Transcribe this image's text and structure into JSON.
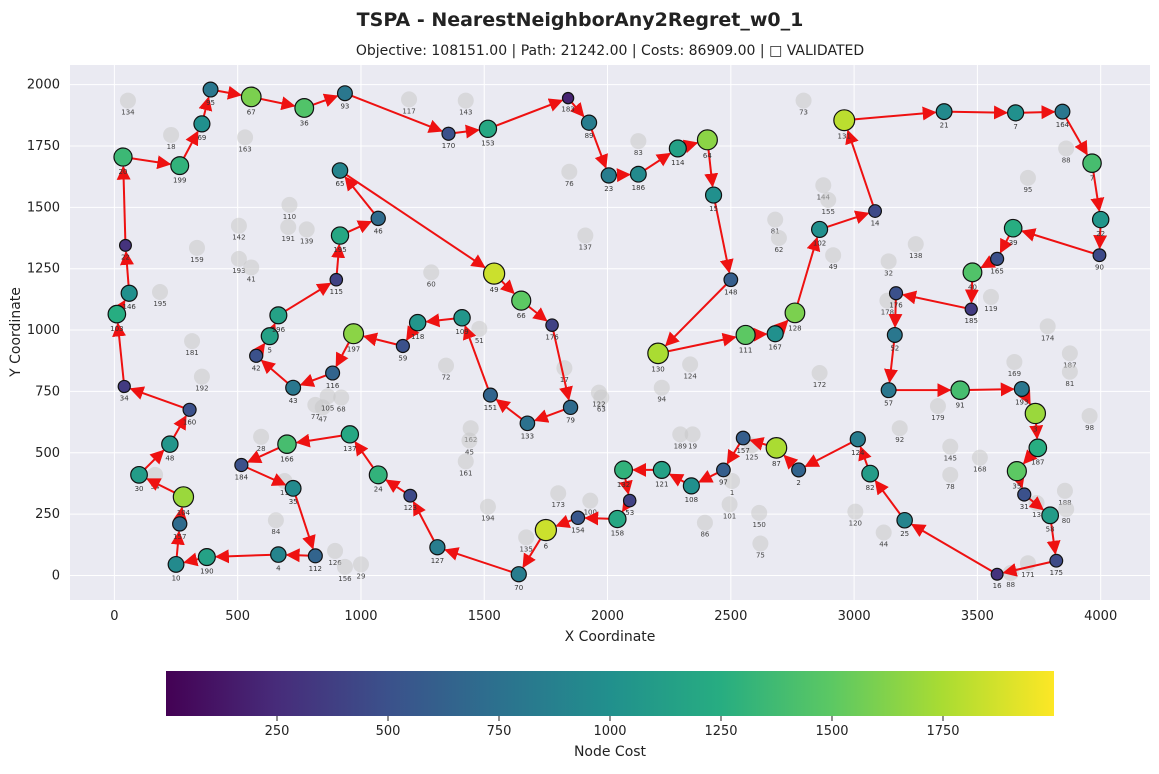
{
  "chart_data": {
    "type": "scatter",
    "title": "TSPA - NearestNeighborAny2Regret_w0_1",
    "subtitle": "Objective: 108151.00 | Path: 21242.00 | Costs: 86909.00 | □ VALIDATED",
    "xlabel": "X Coordinate",
    "ylabel": "Y Coordinate",
    "xlim": [
      -180,
      4200
    ],
    "ylim": [
      -100,
      2080
    ],
    "x_ticks": [
      0,
      500,
      1000,
      1500,
      2000,
      2500,
      3000,
      3500,
      4000
    ],
    "y_ticks": [
      0,
      250,
      500,
      750,
      1000,
      1250,
      1500,
      1750,
      2000
    ],
    "grid": true,
    "colorbar": {
      "label": "Node Cost",
      "min": 0,
      "max": 2000,
      "ticks": [
        250,
        500,
        750,
        1000,
        1250,
        1500,
        1750
      ],
      "colormap": [
        "#440154",
        "#472c7a",
        "#3b518b",
        "#2c718e",
        "#21908d",
        "#27ad81",
        "#5cc863",
        "#aadc32",
        "#fde725"
      ]
    },
    "colors": {
      "edge": "#ee1111",
      "background": "#eaeaf2",
      "grid": "#ffffff",
      "unselected": "#c8c8c8"
    },
    "route": [
      {
        "id": "95",
        "x": 390,
        "y": 1980,
        "cost": 800
      },
      {
        "id": "67",
        "x": 555,
        "y": 1950,
        "cost": 1600
      },
      {
        "id": "36",
        "x": 770,
        "y": 1905,
        "cost": 1450
      },
      {
        "id": "93",
        "x": 935,
        "y": 1965,
        "cost": 800
      },
      {
        "id": "170",
        "x": 1355,
        "y": 1800,
        "cost": 500
      },
      {
        "id": "153",
        "x": 1515,
        "y": 1820,
        "cost": 1200
      },
      {
        "id": "183",
        "x": 1840,
        "y": 1945,
        "cost": 200
      },
      {
        "id": "89",
        "x": 1925,
        "y": 1845,
        "cost": 850
      },
      {
        "id": "23",
        "x": 2005,
        "y": 1630,
        "cost": 850
      },
      {
        "id": "186",
        "x": 2125,
        "y": 1635,
        "cost": 950
      },
      {
        "id": "114",
        "x": 2285,
        "y": 1740,
        "cost": 1150
      },
      {
        "id": "64",
        "x": 2405,
        "y": 1775,
        "cost": 1650
      },
      {
        "id": "15",
        "x": 2430,
        "y": 1550,
        "cost": 1000
      },
      {
        "id": "148",
        "x": 2500,
        "y": 1205,
        "cost": 600
      },
      {
        "id": "130",
        "x": 2205,
        "y": 905,
        "cost": 1750
      },
      {
        "id": "111",
        "x": 2560,
        "y": 980,
        "cost": 1500
      },
      {
        "id": "167",
        "x": 2680,
        "y": 985,
        "cost": 1000
      },
      {
        "id": "128",
        "x": 2760,
        "y": 1070,
        "cost": 1600
      },
      {
        "id": "102",
        "x": 2860,
        "y": 1410,
        "cost": 1000
      },
      {
        "id": "14",
        "x": 3085,
        "y": 1485,
        "cost": 450
      },
      {
        "id": "131",
        "x": 2960,
        "y": 1855,
        "cost": 1800
      },
      {
        "id": "21",
        "x": 3365,
        "y": 1890,
        "cost": 950
      },
      {
        "id": "7",
        "x": 3655,
        "y": 1885,
        "cost": 1000
      },
      {
        "id": "164",
        "x": 3845,
        "y": 1890,
        "cost": 800
      },
      {
        "id": "7b",
        "x": 3965,
        "y": 1680,
        "cost": 1400
      },
      {
        "id": "22",
        "x": 4000,
        "y": 1450,
        "cost": 1050
      },
      {
        "id": "90",
        "x": 3995,
        "y": 1305,
        "cost": 450
      },
      {
        "id": "39",
        "x": 3645,
        "y": 1415,
        "cost": 1250
      },
      {
        "id": "165",
        "x": 3580,
        "y": 1290,
        "cost": 500
      },
      {
        "id": "40",
        "x": 3480,
        "y": 1235,
        "cost": 1450
      },
      {
        "id": "185",
        "x": 3475,
        "y": 1085,
        "cost": 350
      },
      {
        "id": "176",
        "x": 3170,
        "y": 1150,
        "cost": 500
      },
      {
        "id": "52",
        "x": 3165,
        "y": 980,
        "cost": 800
      },
      {
        "id": "57",
        "x": 3140,
        "y": 755,
        "cost": 800
      },
      {
        "id": "91",
        "x": 3430,
        "y": 755,
        "cost": 1400
      },
      {
        "id": "193",
        "x": 3680,
        "y": 760,
        "cost": 800
      },
      {
        "id": "3",
        "x": 3735,
        "y": 660,
        "cost": 1700
      },
      {
        "id": "187",
        "x": 3745,
        "y": 520,
        "cost": 1250
      },
      {
        "id": "35",
        "x": 3660,
        "y": 425,
        "cost": 1500
      },
      {
        "id": "31",
        "x": 3690,
        "y": 330,
        "cost": 500
      },
      {
        "id": "58",
        "x": 3795,
        "y": 245,
        "cost": 1100
      },
      {
        "id": "175",
        "x": 3820,
        "y": 60,
        "cost": 450
      },
      {
        "id": "16",
        "x": 3580,
        "y": 5,
        "cost": 300
      },
      {
        "id": "25",
        "x": 3205,
        "y": 225,
        "cost": 900
      },
      {
        "id": "82",
        "x": 3065,
        "y": 415,
        "cost": 1100
      },
      {
        "id": "124",
        "x": 3015,
        "y": 555,
        "cost": 850
      },
      {
        "id": "2",
        "x": 2775,
        "y": 430,
        "cost": 650
      },
      {
        "id": "87",
        "x": 2685,
        "y": 520,
        "cost": 1750
      },
      {
        "id": "157",
        "x": 2550,
        "y": 560,
        "cost": 600
      },
      {
        "id": "97",
        "x": 2470,
        "y": 430,
        "cost": 600
      },
      {
        "id": "108",
        "x": 2340,
        "y": 365,
        "cost": 1000
      },
      {
        "id": "121",
        "x": 2220,
        "y": 430,
        "cost": 1150
      },
      {
        "id": "132",
        "x": 2065,
        "y": 430,
        "cost": 1300
      },
      {
        "id": "53",
        "x": 2090,
        "y": 305,
        "cost": 400
      },
      {
        "id": "158",
        "x": 2040,
        "y": 230,
        "cost": 1200
      },
      {
        "id": "154",
        "x": 1880,
        "y": 235,
        "cost": 550
      },
      {
        "id": "6",
        "x": 1750,
        "y": 185,
        "cost": 1850
      },
      {
        "id": "70",
        "x": 1640,
        "y": 5,
        "cost": 850
      },
      {
        "id": "127",
        "x": 1310,
        "y": 115,
        "cost": 850
      },
      {
        "id": "123",
        "x": 1200,
        "y": 325,
        "cost": 450
      },
      {
        "id": "24",
        "x": 1070,
        "y": 410,
        "cost": 1300
      },
      {
        "id": "137b",
        "x": 955,
        "y": 575,
        "cost": 1200
      },
      {
        "id": "166",
        "x": 700,
        "y": 535,
        "cost": 1400
      },
      {
        "id": "184",
        "x": 515,
        "y": 450,
        "cost": 500
      },
      {
        "id": "35b",
        "x": 725,
        "y": 355,
        "cost": 950
      },
      {
        "id": "112",
        "x": 815,
        "y": 80,
        "cost": 650
      },
      {
        "id": "4",
        "x": 665,
        "y": 85,
        "cost": 900
      },
      {
        "id": "190",
        "x": 375,
        "y": 75,
        "cost": 1150
      },
      {
        "id": "10",
        "x": 250,
        "y": 45,
        "cost": 950
      },
      {
        "id": "157b",
        "x": 265,
        "y": 210,
        "cost": 700
      },
      {
        "id": "104",
        "x": 280,
        "y": 320,
        "cost": 1700
      },
      {
        "id": "30",
        "x": 100,
        "y": 410,
        "cost": 1100
      },
      {
        "id": "48",
        "x": 225,
        "y": 535,
        "cost": 1050
      },
      {
        "id": "160",
        "x": 305,
        "y": 675,
        "cost": 500
      },
      {
        "id": "34",
        "x": 40,
        "y": 770,
        "cost": 350
      },
      {
        "id": "103",
        "x": 10,
        "y": 1065,
        "cost": 1250
      },
      {
        "id": "146",
        "x": 60,
        "y": 1150,
        "cost": 1000
      },
      {
        "id": "22b",
        "x": 45,
        "y": 1345,
        "cost": 300
      },
      {
        "id": "20",
        "x": 35,
        "y": 1705,
        "cost": 1350
      },
      {
        "id": "199",
        "x": 265,
        "y": 1670,
        "cost": 1300
      },
      {
        "id": "69",
        "x": 355,
        "y": 1840,
        "cost": 1000
      }
    ],
    "route_b": [
      {
        "id": "49b",
        "x": 1540,
        "y": 1230,
        "cost": 1850
      },
      {
        "id": "66",
        "x": 1650,
        "y": 1120,
        "cost": 1500
      },
      {
        "id": "176b",
        "x": 1775,
        "y": 1020,
        "cost": 400
      },
      {
        "id": "79",
        "x": 1850,
        "y": 685,
        "cost": 700
      },
      {
        "id": "133",
        "x": 1675,
        "y": 620,
        "cost": 750
      },
      {
        "id": "151",
        "x": 1525,
        "y": 735,
        "cost": 650
      },
      {
        "id": "109",
        "x": 1410,
        "y": 1050,
        "cost": 1050
      },
      {
        "id": "118",
        "x": 1230,
        "y": 1030,
        "cost": 1050
      },
      {
        "id": "59",
        "x": 1170,
        "y": 935,
        "cost": 500
      },
      {
        "id": "197",
        "x": 970,
        "y": 985,
        "cost": 1650
      },
      {
        "id": "116",
        "x": 885,
        "y": 825,
        "cost": 650
      },
      {
        "id": "43",
        "x": 725,
        "y": 765,
        "cost": 800
      },
      {
        "id": "42",
        "x": 575,
        "y": 895,
        "cost": 500
      },
      {
        "id": "5",
        "x": 630,
        "y": 975,
        "cost": 1150
      },
      {
        "id": "196",
        "x": 665,
        "y": 1060,
        "cost": 1150
      },
      {
        "id": "115",
        "x": 900,
        "y": 1205,
        "cost": 400
      },
      {
        "id": "195",
        "x": 915,
        "y": 1385,
        "cost": 1200
      },
      {
        "id": "46",
        "x": 1070,
        "y": 1455,
        "cost": 700
      },
      {
        "id": "65",
        "x": 915,
        "y": 1650,
        "cost": 900
      }
    ],
    "node_labels": [
      {
        "id": "134",
        "x": 55,
        "y": 1935
      },
      {
        "id": "18",
        "x": 230,
        "y": 1795
      },
      {
        "id": "163",
        "x": 530,
        "y": 1785
      },
      {
        "id": "117",
        "x": 1195,
        "y": 1940
      },
      {
        "id": "143",
        "x": 1425,
        "y": 1935
      },
      {
        "id": "76",
        "x": 1845,
        "y": 1645
      },
      {
        "id": "83",
        "x": 2125,
        "y": 1770
      },
      {
        "id": "73",
        "x": 2795,
        "y": 1935
      },
      {
        "id": "88b",
        "x": 3860,
        "y": 1740
      },
      {
        "id": "95b",
        "x": 3705,
        "y": 1620
      },
      {
        "id": "144",
        "x": 2875,
        "y": 1590
      },
      {
        "id": "155",
        "x": 2895,
        "y": 1530
      },
      {
        "id": "81",
        "x": 2680,
        "y": 1450
      },
      {
        "id": "62",
        "x": 2695,
        "y": 1375
      },
      {
        "id": "49",
        "x": 2915,
        "y": 1305
      },
      {
        "id": "138",
        "x": 3250,
        "y": 1350
      },
      {
        "id": "32",
        "x": 3140,
        "y": 1280
      },
      {
        "id": "178",
        "x": 3135,
        "y": 1120
      },
      {
        "id": "119",
        "x": 3555,
        "y": 1135
      },
      {
        "id": "174",
        "x": 3785,
        "y": 1015
      },
      {
        "id": "187b",
        "x": 3875,
        "y": 905
      },
      {
        "id": "81b",
        "x": 3875,
        "y": 830
      },
      {
        "id": "98",
        "x": 3955,
        "y": 650
      },
      {
        "id": "169",
        "x": 3650,
        "y": 870
      },
      {
        "id": "179",
        "x": 3340,
        "y": 690
      },
      {
        "id": "92",
        "x": 3185,
        "y": 600
      },
      {
        "id": "145",
        "x": 3390,
        "y": 525
      },
      {
        "id": "168",
        "x": 3510,
        "y": 480
      },
      {
        "id": "78",
        "x": 3390,
        "y": 410
      },
      {
        "id": "188",
        "x": 3855,
        "y": 345
      },
      {
        "id": "13",
        "x": 3740,
        "y": 295
      },
      {
        "id": "80",
        "x": 3860,
        "y": 270
      },
      {
        "id": "171",
        "x": 3705,
        "y": 50
      },
      {
        "id": "88",
        "x": 3635,
        "y": 10
      },
      {
        "id": "120",
        "x": 3005,
        "y": 260
      },
      {
        "id": "44",
        "x": 3120,
        "y": 175
      },
      {
        "id": "75",
        "x": 2620,
        "y": 130
      },
      {
        "id": "150",
        "x": 2615,
        "y": 255
      },
      {
        "id": "101",
        "x": 2495,
        "y": 290
      },
      {
        "id": "1",
        "x": 2505,
        "y": 385
      },
      {
        "id": "86",
        "x": 2395,
        "y": 215
      },
      {
        "id": "189",
        "x": 2295,
        "y": 575
      },
      {
        "id": "19",
        "x": 2345,
        "y": 575
      },
      {
        "id": "125",
        "x": 2585,
        "y": 530
      },
      {
        "id": "94",
        "x": 2220,
        "y": 765
      },
      {
        "id": "124b",
        "x": 2335,
        "y": 860
      },
      {
        "id": "172",
        "x": 2860,
        "y": 825
      },
      {
        "id": "63",
        "x": 1975,
        "y": 725
      },
      {
        "id": "122",
        "x": 1965,
        "y": 745
      },
      {
        "id": "173",
        "x": 1800,
        "y": 335
      },
      {
        "id": "100",
        "x": 1930,
        "y": 305
      },
      {
        "id": "135",
        "x": 1670,
        "y": 155
      },
      {
        "id": "194",
        "x": 1515,
        "y": 280
      },
      {
        "id": "162",
        "x": 1445,
        "y": 600
      },
      {
        "id": "45",
        "x": 1440,
        "y": 550
      },
      {
        "id": "161",
        "x": 1425,
        "y": 465
      },
      {
        "id": "72",
        "x": 1345,
        "y": 855
      },
      {
        "id": "51",
        "x": 1480,
        "y": 1005
      },
      {
        "id": "60",
        "x": 1285,
        "y": 1235
      },
      {
        "id": "137",
        "x": 1910,
        "y": 1385
      },
      {
        "id": "17",
        "x": 1825,
        "y": 845
      },
      {
        "id": "47",
        "x": 845,
        "y": 685
      },
      {
        "id": "77",
        "x": 815,
        "y": 695
      },
      {
        "id": "68",
        "x": 920,
        "y": 725
      },
      {
        "id": "105",
        "x": 865,
        "y": 730
      },
      {
        "id": "28",
        "x": 595,
        "y": 565
      },
      {
        "id": "11",
        "x": 690,
        "y": 385
      },
      {
        "id": "84",
        "x": 655,
        "y": 225
      },
      {
        "id": "126",
        "x": 895,
        "y": 100
      },
      {
        "id": "156",
        "x": 935,
        "y": 35
      },
      {
        "id": "29",
        "x": 1000,
        "y": 45
      },
      {
        "id": "54",
        "x": 165,
        "y": 410
      },
      {
        "id": "181",
        "x": 315,
        "y": 955
      },
      {
        "id": "192",
        "x": 355,
        "y": 810
      },
      {
        "id": "195b",
        "x": 185,
        "y": 1155
      },
      {
        "id": "159",
        "x": 335,
        "y": 1335
      },
      {
        "id": "142",
        "x": 505,
        "y": 1425
      },
      {
        "id": "193b",
        "x": 505,
        "y": 1290
      },
      {
        "id": "41",
        "x": 555,
        "y": 1255
      },
      {
        "id": "110",
        "x": 710,
        "y": 1510
      },
      {
        "id": "191",
        "x": 705,
        "y": 1420
      },
      {
        "id": "139",
        "x": 780,
        "y": 1410
      }
    ]
  }
}
